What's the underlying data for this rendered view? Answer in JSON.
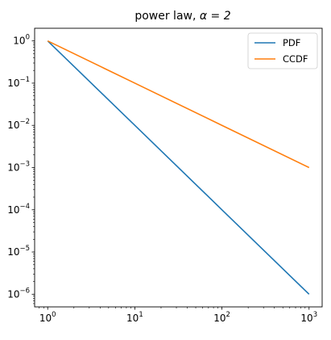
{
  "chart_data": {
    "type": "line",
    "title_prefix": "power law, ",
    "title_math": "α = 2",
    "xlabel": "",
    "ylabel": "",
    "xscale": "log",
    "yscale": "log",
    "xlim": [
      0.7079,
      1412.5
    ],
    "ylim": [
      5.01e-07,
      1.995
    ],
    "x_ticks": [
      {
        "value": 1,
        "base": "10",
        "exp": "0"
      },
      {
        "value": 10,
        "base": "10",
        "exp": "1"
      },
      {
        "value": 100,
        "base": "10",
        "exp": "2"
      },
      {
        "value": 1000,
        "base": "10",
        "exp": "3"
      }
    ],
    "y_ticks": [
      {
        "value": 1e-06,
        "base": "10",
        "exp": "−6"
      },
      {
        "value": 1e-05,
        "base": "10",
        "exp": "−5"
      },
      {
        "value": 0.0001,
        "base": "10",
        "exp": "−4"
      },
      {
        "value": 0.001,
        "base": "10",
        "exp": "−3"
      },
      {
        "value": 0.01,
        "base": "10",
        "exp": "−2"
      },
      {
        "value": 0.1,
        "base": "10",
        "exp": "−1"
      },
      {
        "value": 1,
        "base": "10",
        "exp": "0"
      }
    ],
    "grid": false,
    "legend_position": "top-right",
    "series": [
      {
        "name": "PDF",
        "color": "#1f77b4",
        "x": [
          1,
          10,
          100,
          1000
        ],
        "y": [
          1,
          0.01,
          0.0001,
          1e-06
        ]
      },
      {
        "name": "CCDF",
        "color": "#ff7f0e",
        "x": [
          1,
          10,
          100,
          1000
        ],
        "y": [
          1,
          0.1,
          0.01,
          0.001
        ]
      }
    ]
  }
}
